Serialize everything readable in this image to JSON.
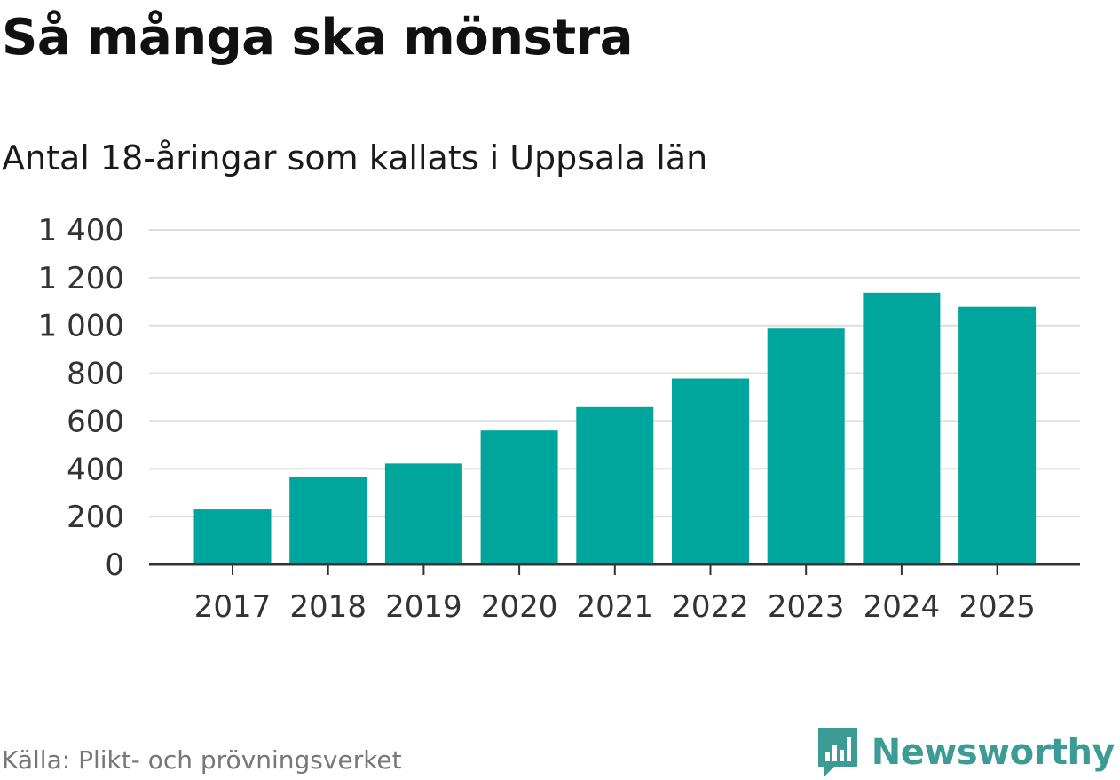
{
  "chart_data": {
    "type": "bar",
    "title": "Så många ska mönstra",
    "subtitle": "Antal 18-åringar som kallats i Uppsala län",
    "categories": [
      "2017",
      "2018",
      "2019",
      "2020",
      "2021",
      "2022",
      "2023",
      "2024",
      "2025"
    ],
    "values": [
      230,
      365,
      422,
      560,
      658,
      778,
      987,
      1137,
      1078
    ],
    "xlabel": "",
    "ylabel": "",
    "ylim": [
      0,
      1400
    ],
    "yticks": [
      0,
      200,
      400,
      600,
      800,
      1000,
      1200,
      1400
    ],
    "ytick_labels": [
      "0",
      "200",
      "400",
      "600",
      "800",
      "1 000",
      "1 200",
      "1 400"
    ],
    "grid": true,
    "legend": "none",
    "bar_color": "#00a59b"
  },
  "footer": {
    "source": "Källa: Plikt- och prövningsverket",
    "brand": "Newsworthy",
    "brand_icon": "newsworthy-logo-icon",
    "brand_color": "#3c9c95"
  }
}
